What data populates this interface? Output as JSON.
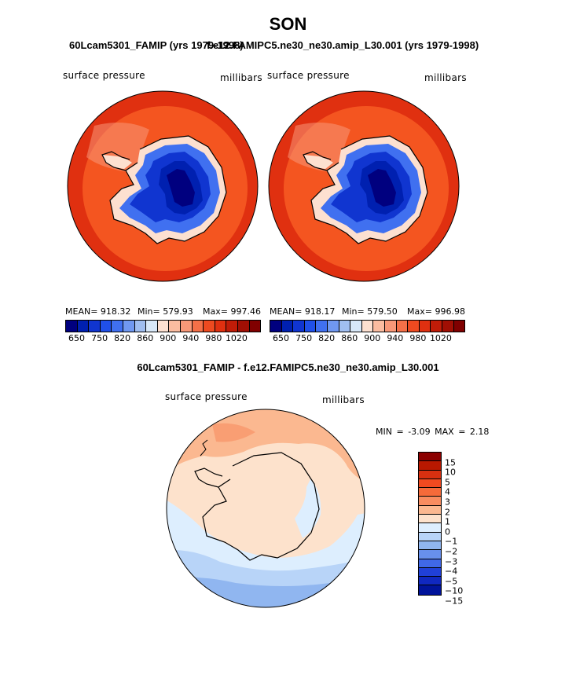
{
  "title": "SON",
  "panels": [
    {
      "caption": "60Lcam5301_FAMIP (yrs 1979-1998)",
      "field_label": "surface pressure",
      "units_label": "millibars",
      "stats": {
        "mean": "MEAN= 918.32",
        "min": "Min= 579.93",
        "max": "Max= 997.46"
      }
    },
    {
      "caption": "f.e12.FAMIPC5.ne30_ne30.amip_L30.001 (yrs 1979-1998)",
      "field_label": "surface pressure",
      "units_label": "millibars",
      "stats": {
        "mean": "MEAN= 918.17",
        "min": "Min= 579.50",
        "max": "Max= 996.98"
      }
    }
  ],
  "abs_colorbar": {
    "colors": [
      "#00007f",
      "#0020b0",
      "#1035d0",
      "#2050e8",
      "#4070f0",
      "#7098f0",
      "#a0bef0",
      "#d8e8f8",
      "#fde0d0",
      "#fbbca0",
      "#f89878",
      "#f47048",
      "#ee4a20",
      "#e03010",
      "#c01c08",
      "#a00f04",
      "#800000"
    ],
    "tick_labels": [
      "650",
      "750",
      "820",
      "860",
      "900",
      "940",
      "980",
      "1020"
    ]
  },
  "diff_panel": {
    "caption": "60Lcam5301_FAMIP - f.e12.FAMIPC5.ne30_ne30.amip_L30.001",
    "field_label": "surface pressure",
    "units_label": "millibars",
    "min_label": "MIN =",
    "min_value": "-3.09",
    "max_label": "MAX =",
    "max_value": "2.18",
    "colorbar": {
      "colors": [
        "#8b0000",
        "#b81800",
        "#d83010",
        "#f04a20",
        "#f56a3a",
        "#f88c60",
        "#fbb890",
        "#fde2cc",
        "#ddeefe",
        "#b8d4f8",
        "#90b6f0",
        "#6890ec",
        "#4068e8",
        "#2040d8",
        "#1028c0",
        "#00139a"
      ],
      "tick_labels": [
        "15",
        "10",
        "5",
        "4",
        "3",
        "2",
        "1",
        "0",
        "−1",
        "−2",
        "−3",
        "−4",
        "−5",
        "−10",
        "−15"
      ]
    }
  }
}
